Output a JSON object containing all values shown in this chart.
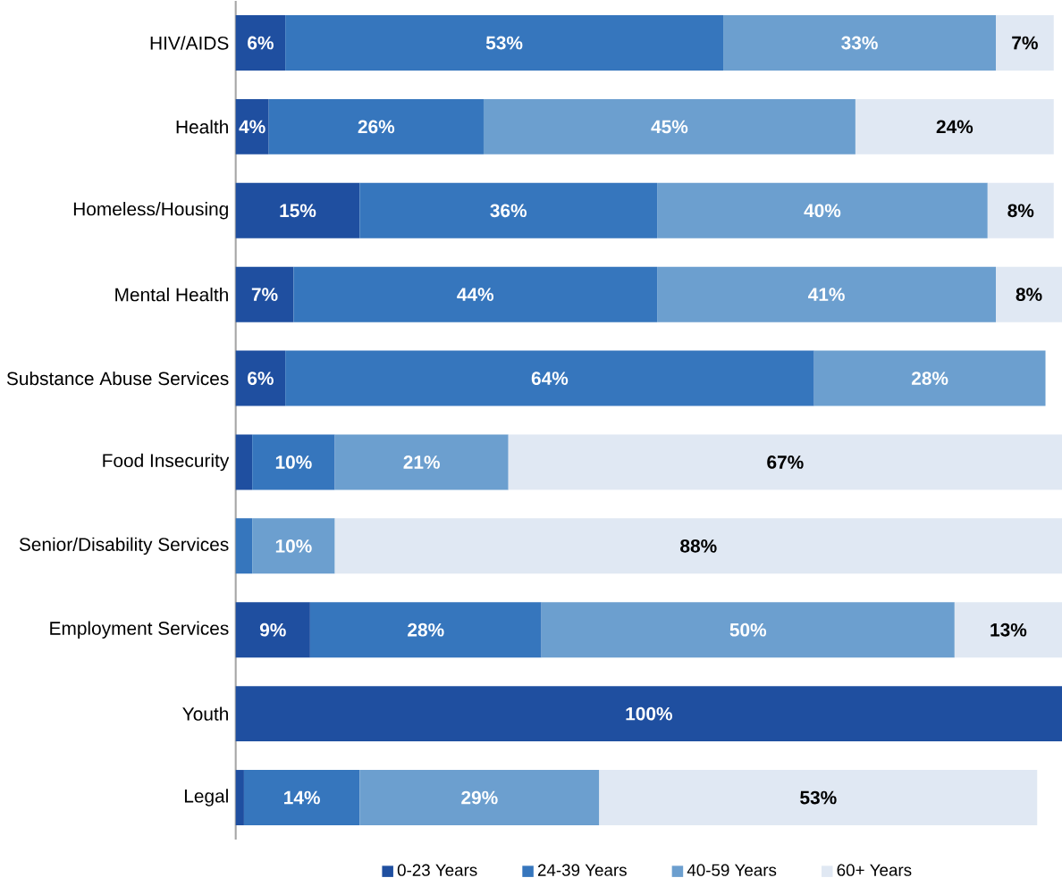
{
  "chart_data": {
    "type": "bar",
    "orientation": "horizontal",
    "stacked": true,
    "legend": "bottom",
    "categories": [
      "HIV/AIDS",
      "Health",
      "Homeless/Housing",
      "Mental Health",
      "Substance Abuse Services",
      "Food Insecurity",
      "Senior/Disability Services",
      "Employment Services",
      "Youth",
      "Legal"
    ],
    "series": [
      {
        "name": "0-23 Years",
        "color": "#1f4fa0",
        "values": [
          6,
          4,
          15,
          7,
          6,
          2,
          null,
          9,
          100,
          1
        ],
        "value_labels": [
          "6%",
          "4%",
          "15%",
          "7%",
          "6%",
          null,
          null,
          "9%",
          "100%",
          null
        ]
      },
      {
        "name": "24-39 Years",
        "color": "#3676bd",
        "values": [
          53,
          26,
          36,
          44,
          64,
          10,
          2,
          28,
          null,
          14
        ],
        "value_labels": [
          "53%",
          "26%",
          "36%",
          "44%",
          "64%",
          "10%",
          null,
          "28%",
          null,
          "14%"
        ]
      },
      {
        "name": "40-59 Years",
        "color": "#6c9fcf",
        "values": [
          33,
          45,
          40,
          41,
          28,
          21,
          10,
          50,
          null,
          29
        ],
        "value_labels": [
          "33%",
          "45%",
          "40%",
          "41%",
          "28%",
          "21%",
          "10%",
          "50%",
          null,
          "29%"
        ]
      },
      {
        "name": "60+ Years",
        "color": "#e0e8f3",
        "values": [
          7,
          24,
          8,
          8,
          null,
          67,
          88,
          13,
          null,
          53
        ],
        "value_labels": [
          "7%",
          "24%",
          "8%",
          "8%",
          null,
          "67%",
          "88%",
          "13%",
          null,
          "53%"
        ]
      }
    ]
  }
}
